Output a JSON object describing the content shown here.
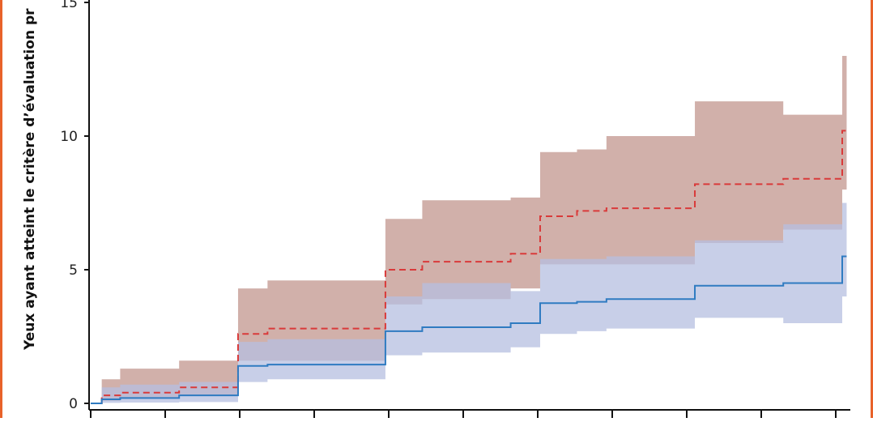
{
  "chart_data": {
    "type": "line",
    "ylabel": "Yeux ayant atteint le critère d’évaluation pr",
    "ylim": [
      0,
      15
    ],
    "yticks": [
      "0",
      "5",
      "10",
      "15"
    ],
    "x_tick_count": 11,
    "xlim": [
      0,
      102
    ],
    "series": [
      {
        "color": "#d93a3a",
        "dash": true,
        "band_color": "#c9a29b",
        "steps": [
          [
            0,
            0
          ],
          [
            1.5,
            0.3
          ],
          [
            4,
            0.4
          ],
          [
            12,
            0.6
          ],
          [
            20,
            2.6
          ],
          [
            24,
            2.8
          ],
          [
            40,
            5.0
          ],
          [
            45,
            5.3
          ],
          [
            57,
            5.6
          ],
          [
            61,
            7.0
          ],
          [
            66,
            7.2
          ],
          [
            70,
            7.3
          ],
          [
            82,
            8.2
          ],
          [
            94,
            8.4
          ],
          [
            102,
            10.2
          ]
        ],
        "upper": [
          [
            1.5,
            0.9
          ],
          [
            4,
            1.3
          ],
          [
            12,
            1.6
          ],
          [
            20,
            4.3
          ],
          [
            24,
            4.6
          ],
          [
            40,
            6.9
          ],
          [
            45,
            7.6
          ],
          [
            57,
            7.7
          ],
          [
            61,
            9.4
          ],
          [
            66,
            9.5
          ],
          [
            70,
            10.0
          ],
          [
            82,
            11.3
          ],
          [
            94,
            10.8
          ],
          [
            102,
            13.0
          ]
        ],
        "lower": [
          [
            1.5,
            0.1
          ],
          [
            4,
            0.2
          ],
          [
            12,
            0.3
          ],
          [
            20,
            1.6
          ],
          [
            24,
            1.6
          ],
          [
            40,
            3.7
          ],
          [
            45,
            3.9
          ],
          [
            57,
            4.3
          ],
          [
            61,
            5.2
          ],
          [
            66,
            5.2
          ],
          [
            70,
            5.2
          ],
          [
            82,
            6.0
          ],
          [
            94,
            6.5
          ],
          [
            102,
            8.0
          ]
        ]
      },
      {
        "color": "#2f7bc1",
        "dash": false,
        "band_color": "#b6bfe0",
        "steps": [
          [
            0,
            0
          ],
          [
            1.5,
            0.15
          ],
          [
            4,
            0.2
          ],
          [
            12,
            0.3
          ],
          [
            20,
            1.4
          ],
          [
            24,
            1.45
          ],
          [
            40,
            2.7
          ],
          [
            45,
            2.85
          ],
          [
            57,
            3.0
          ],
          [
            61,
            3.75
          ],
          [
            66,
            3.8
          ],
          [
            70,
            3.9
          ],
          [
            82,
            4.4
          ],
          [
            94,
            4.5
          ],
          [
            102,
            5.5
          ]
        ],
        "upper": [
          [
            1.5,
            0.6
          ],
          [
            4,
            0.7
          ],
          [
            12,
            0.8
          ],
          [
            20,
            2.3
          ],
          [
            24,
            2.4
          ],
          [
            40,
            4.0
          ],
          [
            45,
            4.5
          ],
          [
            57,
            4.2
          ],
          [
            61,
            5.4
          ],
          [
            66,
            5.4
          ],
          [
            70,
            5.5
          ],
          [
            82,
            6.1
          ],
          [
            94,
            6.7
          ],
          [
            102,
            7.5
          ]
        ],
        "lower": [
          [
            1.5,
            0.02
          ],
          [
            4,
            0.03
          ],
          [
            12,
            0.05
          ],
          [
            20,
            0.8
          ],
          [
            24,
            0.9
          ],
          [
            40,
            1.8
          ],
          [
            45,
            1.9
          ],
          [
            57,
            2.1
          ],
          [
            61,
            2.6
          ],
          [
            66,
            2.7
          ],
          [
            70,
            2.8
          ],
          [
            82,
            3.2
          ],
          [
            94,
            3.0
          ],
          [
            102,
            4.0
          ]
        ]
      }
    ]
  }
}
